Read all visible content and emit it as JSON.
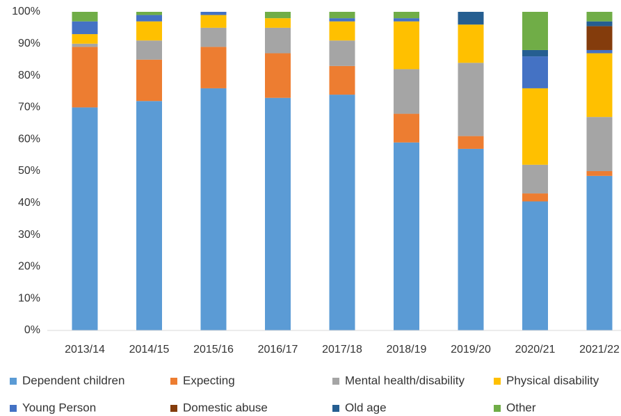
{
  "chart_data": {
    "type": "stacked_bar",
    "categories": [
      "2013/14",
      "2014/15",
      "2015/16",
      "2016/17",
      "2017/18",
      "2018/19",
      "2019/20",
      "2020/21",
      "2021/22"
    ],
    "series": [
      {
        "name": "Dependent children",
        "color": "#5b9bd5",
        "values": [
          70,
          72,
          76,
          73,
          74,
          59,
          57,
          40.5,
          48.5
        ]
      },
      {
        "name": "Expecting",
        "color": "#ed7d31",
        "values": [
          19,
          13,
          13,
          14,
          9,
          9,
          4,
          2.5,
          1.5
        ]
      },
      {
        "name": "Mental health/disability",
        "color": "#a5a5a5",
        "values": [
          1,
          6,
          6,
          8,
          8,
          14,
          23,
          9,
          17
        ]
      },
      {
        "name": "Physical disability",
        "color": "#ffc000",
        "values": [
          3,
          6,
          4,
          3,
          6,
          15,
          12,
          24,
          20
        ]
      },
      {
        "name": "Young Person",
        "color": "#4472c4",
        "values": [
          4,
          2,
          1,
          0,
          1,
          1,
          0,
          10,
          1
        ]
      },
      {
        "name": "Domestic abuse",
        "color": "#843c0c",
        "values": [
          0,
          0,
          0,
          0,
          0,
          0,
          0,
          0,
          7.5
        ]
      },
      {
        "name": "Old age",
        "color": "#255e91",
        "values": [
          0,
          0,
          0,
          0,
          0,
          0,
          4,
          2,
          1.5
        ]
      },
      {
        "name": "Other",
        "color": "#70ad47",
        "values": [
          3,
          1,
          0,
          2,
          2,
          2,
          0,
          12,
          3
        ]
      }
    ],
    "ylim": [
      0,
      100
    ],
    "yticks": [
      {
        "value": 0,
        "label": "0%"
      },
      {
        "value": 10,
        "label": "10%"
      },
      {
        "value": 20,
        "label": "20%"
      },
      {
        "value": 30,
        "label": "30%"
      },
      {
        "value": 40,
        "label": "40%"
      },
      {
        "value": 50,
        "label": "50%"
      },
      {
        "value": 60,
        "label": "60%"
      },
      {
        "value": 70,
        "label": "70%"
      },
      {
        "value": 80,
        "label": "80%"
      },
      {
        "value": 90,
        "label": "90%"
      },
      {
        "value": 100,
        "label": "100%"
      }
    ],
    "grid": false,
    "legend": "bottom"
  }
}
